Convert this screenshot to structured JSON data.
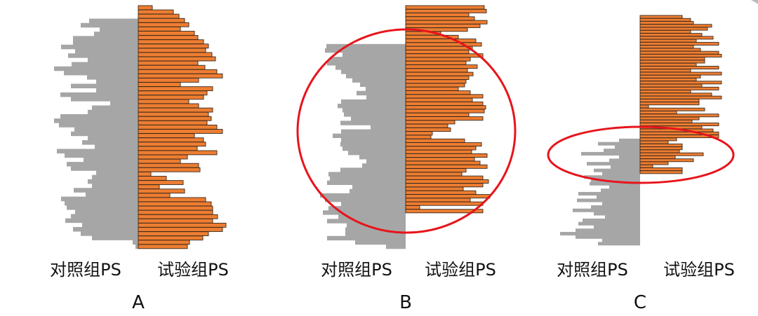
{
  "figure": {
    "title": "",
    "colors": {
      "control": "#a6a6a6",
      "treated": "#ed7d31",
      "treated_edge": "#3a2a1e",
      "highlight_ellipse": "#e8141b",
      "text": "#111111"
    }
  },
  "chart_data": [
    {
      "type": "bar",
      "panel": "A",
      "title": "",
      "orientation": "back-to-back horizontal",
      "control_label": "对照组PS",
      "treated_label": "试验组PS",
      "highlight": "none",
      "series": [
        {
          "name": "对照组PS",
          "side": "left",
          "values": [
            0,
            0,
            0,
            70,
            82,
            55,
            63,
            93,
            93,
            110,
            90,
            100,
            72,
            95,
            120,
            106,
            73,
            60,
            96,
            60,
            111,
            96,
            40,
            66,
            72,
            111,
            120,
            113,
            91,
            96,
            72,
            80,
            62,
            116,
            105,
            78,
            102,
            96,
            60,
            66,
            72,
            66,
            92,
            75,
            110,
            105,
            102,
            90,
            96,
            104,
            80,
            93,
            82,
            66,
            8,
            4
          ]
        },
        {
          "name": "试验组PS",
          "side": "right",
          "values": [
            20,
            50,
            58,
            66,
            72,
            60,
            80,
            85,
            93,
            100,
            96,
            105,
            110,
            85,
            95,
            112,
            120,
            86,
            60,
            106,
            98,
            93,
            72,
            86,
            106,
            100,
            104,
            98,
            112,
            120,
            80,
            93,
            96,
            84,
            112,
            70,
            60,
            86,
            88,
            18,
            40,
            64,
            30,
            66,
            45,
            96,
            104,
            106,
            106,
            113,
            106,
            125,
            120,
            100,
            92,
            73,
            70
          ]
        }
      ]
    },
    {
      "type": "bar",
      "panel": "B",
      "title": "",
      "orientation": "back-to-back horizontal",
      "control_label": "对照组PS",
      "treated_label": "试验组PS",
      "highlight": "ellipse around full panel",
      "series": [
        {
          "name": "对照组PS",
          "side": "left",
          "values": [
            0,
            0,
            0,
            0,
            0,
            0,
            0,
            0,
            0,
            113,
            115,
            90,
            108,
            112,
            100,
            92,
            85,
            76,
            65,
            57,
            70,
            56,
            92,
            97,
            90,
            88,
            78,
            93,
            50,
            92,
            104,
            92,
            93,
            90,
            82,
            66,
            56,
            62,
            93,
            110,
            108,
            112,
            76,
            80,
            122,
            115,
            92,
            110,
            118,
            96,
            112,
            84,
            86,
            86,
            112,
            72,
            28
          ]
        },
        {
          "name": "试验组PS",
          "side": "right",
          "values": [
            112,
            115,
            90,
            98,
            116,
            106,
            88,
            50,
            75,
            100,
            108,
            95,
            90,
            110,
            92,
            86,
            102,
            88,
            96,
            90,
            86,
            84,
            75,
            92,
            110,
            95,
            110,
            114,
            112,
            90,
            110,
            70,
            60,
            64,
            38,
            36,
            84,
            108,
            100,
            94,
            116,
            98,
            106,
            116,
            86,
            80,
            110,
            118,
            110,
            82,
            100,
            120,
            92,
            110,
            20,
            110
          ]
        }
      ]
    },
    {
      "type": "bar",
      "panel": "C",
      "title": "",
      "orientation": "back-to-back horizontal",
      "control_label": "对照组PS",
      "treated_label": "试验组PS",
      "highlight": "ellipse around overlap region",
      "series": [
        {
          "name": "对照组PS",
          "side": "left",
          "values": [
            0,
            0,
            0,
            0,
            0,
            0,
            0,
            0,
            0,
            0,
            0,
            0,
            0,
            0,
            0,
            0,
            0,
            0,
            0,
            0,
            0,
            0,
            0,
            0,
            0,
            0,
            0,
            0,
            0,
            0,
            0,
            0,
            0,
            0,
            0,
            0,
            0,
            30,
            60,
            36,
            52,
            84,
            30,
            44,
            76,
            42,
            66,
            54,
            80,
            70,
            72,
            44,
            56,
            88,
            62,
            90,
            54,
            70,
            96,
            66,
            50,
            82,
            88,
            66,
            92,
            114,
            92,
            54,
            60
          ]
        },
        {
          "name": "试验组PS",
          "side": "right",
          "values": [
            60,
            72,
            76,
            102,
            96,
            72,
            88,
            104,
            80,
            112,
            76,
            86,
            112,
            116,
            92,
            92,
            80,
            112,
            72,
            116,
            86,
            80,
            116,
            88,
            112,
            72,
            102,
            116,
            84,
            84,
            12,
            92,
            52,
            112,
            84,
            74,
            112,
            88,
            104,
            112,
            112,
            52,
            40,
            60,
            60,
            56,
            90,
            50,
            76,
            40,
            18,
            60,
            60
          ]
        }
      ]
    }
  ]
}
